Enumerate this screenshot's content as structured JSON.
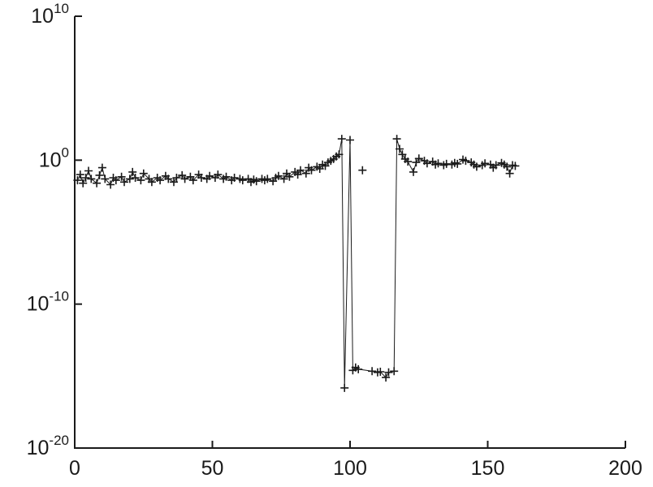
{
  "chart_data": {
    "type": "line",
    "title": "",
    "xlabel": "",
    "ylabel": "",
    "legend": null,
    "grid": false,
    "marker": "+",
    "line_color": "#1a1a1a",
    "axis_color": "#1a1a1a",
    "background": "#ffffff",
    "y_scale": "log",
    "xlim": [
      0,
      200
    ],
    "ylog_exponent_range": [
      -20,
      10
    ],
    "xticks": [
      0,
      50,
      100,
      150,
      200
    ],
    "ytick_exponents": [
      10,
      0,
      -10,
      -20
    ],
    "ytick_base": "10",
    "x": [
      1,
      2,
      3,
      4,
      5,
      6,
      8,
      9,
      10,
      11,
      13,
      14,
      15,
      17,
      18,
      20,
      21,
      22,
      24,
      25,
      27,
      28,
      30,
      31,
      33,
      34,
      36,
      37,
      39,
      40,
      42,
      43,
      45,
      46,
      48,
      49,
      51,
      52,
      54,
      55,
      57,
      58,
      60,
      61,
      63,
      64,
      65,
      66,
      68,
      69,
      70,
      72,
      73,
      74,
      76,
      77,
      78,
      80,
      81,
      82,
      84,
      85,
      86,
      88,
      89,
      90,
      91,
      92,
      93,
      94,
      95,
      96,
      97,
      98,
      100,
      101,
      102,
      103,
      108,
      110,
      111,
      113,
      114,
      116,
      117,
      118,
      119,
      120,
      121,
      123,
      124,
      125,
      127,
      128,
      130,
      131,
      132,
      134,
      135,
      137,
      138,
      139,
      141,
      142,
      144,
      145,
      146,
      148,
      149,
      151,
      152,
      153,
      155,
      156,
      157,
      158,
      159,
      160
    ],
    "y": [
      0.04,
      0.1,
      0.025,
      0.06,
      0.18,
      0.05,
      0.025,
      0.09,
      0.3,
      0.05,
      0.02,
      0.06,
      0.04,
      0.07,
      0.03,
      0.05,
      0.15,
      0.06,
      0.04,
      0.12,
      0.05,
      0.03,
      0.06,
      0.04,
      0.08,
      0.05,
      0.03,
      0.06,
      0.09,
      0.05,
      0.07,
      0.04,
      0.1,
      0.06,
      0.05,
      0.08,
      0.06,
      0.1,
      0.05,
      0.07,
      0.04,
      0.06,
      0.05,
      0.04,
      0.05,
      0.03,
      0.045,
      0.035,
      0.05,
      0.04,
      0.05,
      0.035,
      0.06,
      0.08,
      0.05,
      0.12,
      0.07,
      0.15,
      0.1,
      0.2,
      0.12,
      0.3,
      0.2,
      0.35,
      0.25,
      0.5,
      0.4,
      0.7,
      0.9,
      1.2,
      1.8,
      2.5,
      30,
      1.5e-16,
      25,
      2.5e-15,
      4e-15,
      3e-15,
      2.2e-15,
      1.8e-15,
      2e-15,
      8e-16,
      1.8e-15,
      2.2e-15,
      30,
      6,
      2.5,
      1.2,
      0.8,
      0.15,
      0.7,
      1.3,
      0.9,
      0.6,
      0.8,
      0.5,
      0.6,
      0.45,
      0.55,
      0.5,
      0.65,
      0.55,
      1.1,
      0.9,
      0.7,
      0.5,
      0.35,
      0.45,
      0.6,
      0.5,
      0.3,
      0.45,
      0.65,
      0.5,
      0.35,
      0.12,
      0.45,
      0.4
    ],
    "extra_points": [
      {
        "x": 104.5,
        "y": 0.2
      }
    ]
  }
}
